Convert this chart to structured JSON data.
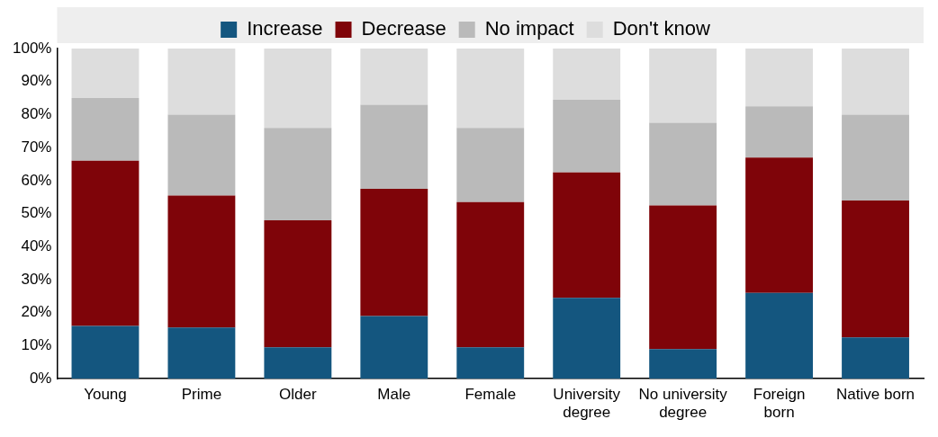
{
  "chart_data": {
    "type": "bar",
    "stacked": true,
    "legend": "top",
    "grid": false,
    "categories": [
      "Young",
      "Prime",
      "Older",
      "Male",
      "Female",
      "University degree",
      "No university degree",
      "Foreign born",
      "Native born"
    ],
    "series": [
      {
        "name": "Increase",
        "color": "#14567f",
        "values": [
          16,
          15.5,
          9.5,
          19,
          9.5,
          24.5,
          9,
          26,
          12.5
        ]
      },
      {
        "name": "Decrease",
        "color": "#7f0409",
        "values": [
          50,
          40,
          38.5,
          38.5,
          44,
          38,
          43.5,
          41,
          41.5
        ]
      },
      {
        "name": "No impact",
        "color": "#bababa",
        "values": [
          19,
          24.5,
          28,
          25.5,
          22.5,
          22,
          25,
          15.5,
          26
        ]
      },
      {
        "name": "Don't know",
        "color": "#dddddd",
        "values": [
          15,
          20,
          24,
          17,
          24,
          15.5,
          22.5,
          17.5,
          20
        ]
      }
    ],
    "ylim": [
      0,
      100
    ],
    "yticks": [
      {
        "value": 0,
        "label": "0%"
      },
      {
        "value": 10,
        "label": "10%"
      },
      {
        "value": 20,
        "label": "20%"
      },
      {
        "value": 30,
        "label": "30%"
      },
      {
        "value": 40,
        "label": "40%"
      },
      {
        "value": 50,
        "label": "50%"
      },
      {
        "value": 60,
        "label": "60%"
      },
      {
        "value": 70,
        "label": "70%"
      },
      {
        "value": 80,
        "label": "80%"
      },
      {
        "value": 90,
        "label": "90%"
      },
      {
        "value": 100,
        "label": "100%"
      }
    ]
  }
}
